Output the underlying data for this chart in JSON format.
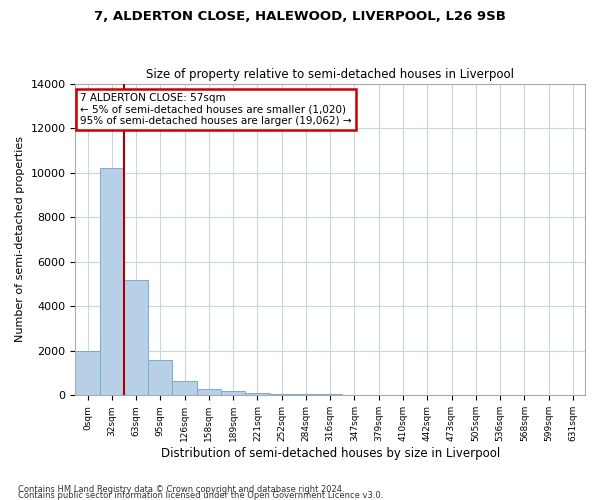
{
  "title": "7, ALDERTON CLOSE, HALEWOOD, LIVERPOOL, L26 9SB",
  "subtitle": "Size of property relative to semi-detached houses in Liverpool",
  "xlabel": "Distribution of semi-detached houses by size in Liverpool",
  "ylabel": "Number of semi-detached properties",
  "footer_line1": "Contains HM Land Registry data © Crown copyright and database right 2024.",
  "footer_line2": "Contains public sector information licensed under the Open Government Licence v3.0.",
  "annotation_title": "7 ALDERTON CLOSE: 57sqm",
  "annotation_line1": "← 5% of semi-detached houses are smaller (1,020)",
  "annotation_line2": "95% of semi-detached houses are larger (19,062) →",
  "bar_color": "#b8cfe8",
  "bar_edge_color": "#7aaad0",
  "marker_line_color": "#aa0000",
  "annotation_box_color": "#ffffff",
  "annotation_box_edge_color": "#cc0000",
  "background_color": "#ffffff",
  "grid_color": "#c8d4e8",
  "categories": [
    "0sqm",
    "32sqm",
    "63sqm",
    "95sqm",
    "126sqm",
    "158sqm",
    "189sqm",
    "221sqm",
    "252sqm",
    "284sqm",
    "316sqm",
    "347sqm",
    "379sqm",
    "410sqm",
    "442sqm",
    "473sqm",
    "505sqm",
    "536sqm",
    "568sqm",
    "599sqm",
    "631sqm"
  ],
  "values": [
    1980,
    10200,
    5200,
    1580,
    650,
    300,
    190,
    100,
    75,
    50,
    40,
    0,
    0,
    0,
    0,
    0,
    0,
    0,
    0,
    0,
    0
  ],
  "marker_bin_index": 1,
  "ylim": [
    0,
    14000
  ],
  "yticks": [
    0,
    2000,
    4000,
    6000,
    8000,
    10000,
    12000,
    14000
  ]
}
